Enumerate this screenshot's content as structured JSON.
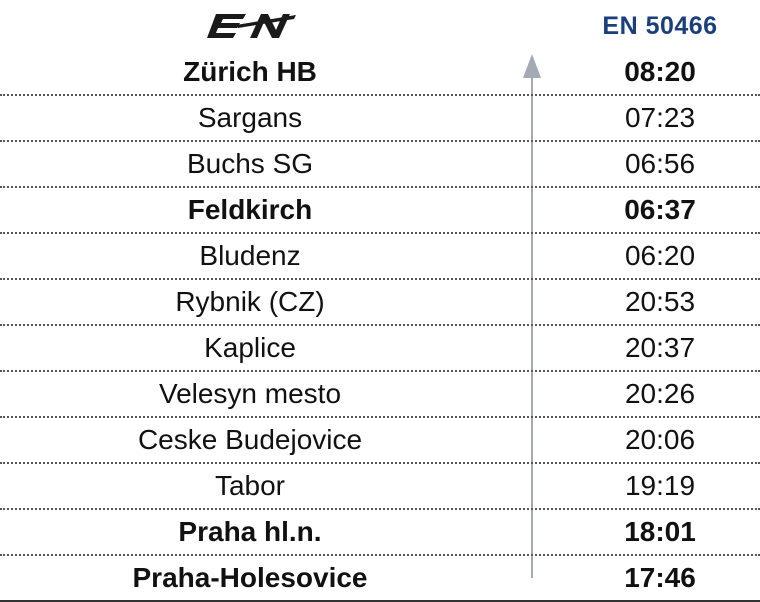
{
  "header": {
    "logo": "EN",
    "train_number": "EN 50466"
  },
  "direction": "arrow-up-icon",
  "colors": {
    "train_number": "#1b3f7a",
    "arrow": "#a3a9b5"
  },
  "rows": [
    {
      "station": "Zürich HB",
      "time": "08:20",
      "bold": true
    },
    {
      "station": "Sargans",
      "time": "07:23",
      "bold": false
    },
    {
      "station": "Buchs SG",
      "time": "06:56",
      "bold": false
    },
    {
      "station": "Feldkirch",
      "time": "06:37",
      "bold": true
    },
    {
      "station": "Bludenz",
      "time": "06:20",
      "bold": false
    },
    {
      "station": "Rybnik (CZ)",
      "time": "20:53",
      "bold": false
    },
    {
      "station": "Kaplice",
      "time": "20:37",
      "bold": false
    },
    {
      "station": "Velesyn mesto",
      "time": "20:26",
      "bold": false
    },
    {
      "station": "Ceske Budejovice",
      "time": "20:06",
      "bold": false
    },
    {
      "station": "Tabor",
      "time": "19:19",
      "bold": false
    },
    {
      "station": "Praha hl.n.",
      "time": "18:01",
      "bold": true
    },
    {
      "station": "Praha-Holesovice",
      "time": "17:46",
      "bold": true
    }
  ]
}
